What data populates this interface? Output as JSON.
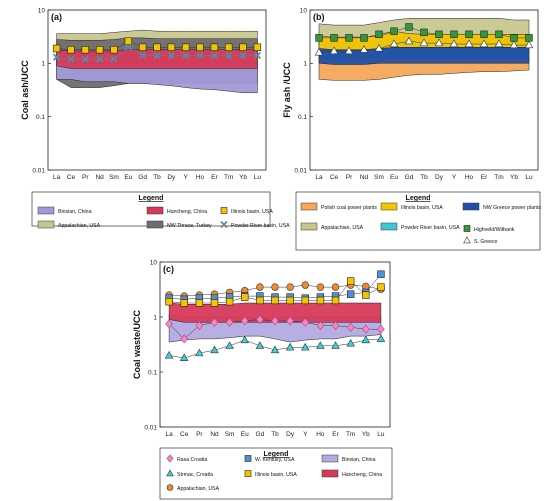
{
  "chart_data": [
    {
      "type": "area",
      "panel_label": "(a)",
      "ylabel": "Coal ash/UCC",
      "yscale": "log",
      "ylim": [
        0.01,
        10
      ],
      "yticks": [
        "0.01",
        "0.1",
        "1",
        "10"
      ],
      "categories": [
        "La",
        "Ce",
        "Pr",
        "Nd",
        "Sm",
        "Eu",
        "Gd",
        "Tb",
        "Dy",
        "Y",
        "Ho",
        "Er",
        "Tm",
        "Yb",
        "Lu"
      ],
      "legend_title": "Legend",
      "bands": [
        {
          "name": "Appalachian, USA",
          "color": "#c8c690",
          "upper": [
            3.6,
            3.6,
            3.6,
            3.6,
            3.8,
            4.0,
            4.2,
            4.0,
            4.0,
            4.0,
            4.0,
            4.0,
            4.0,
            4.0,
            4.0
          ],
          "lower": [
            0.9,
            0.9,
            0.9,
            0.9,
            0.9,
            0.9,
            0.9,
            0.9,
            0.9,
            0.9,
            0.9,
            0.9,
            0.9,
            0.9,
            0.9
          ]
        },
        {
          "name": "NW Thrace, Turkey",
          "color": "#6e6e6e",
          "upper": [
            2.8,
            2.7,
            2.7,
            2.7,
            2.8,
            3.0,
            3.0,
            2.9,
            2.9,
            2.9,
            2.9,
            2.9,
            2.9,
            2.9,
            2.9
          ],
          "lower": [
            0.5,
            0.35,
            0.35,
            0.35,
            0.38,
            0.42,
            0.42,
            0.42,
            0.42,
            0.42,
            0.42,
            0.42,
            0.42,
            0.42,
            0.42
          ]
        },
        {
          "name": "Binxian, China",
          "color": "#a29ad8",
          "upper": [
            1.1,
            1.0,
            1.0,
            1.0,
            1.0,
            1.0,
            1.0,
            1.0,
            1.0,
            1.0,
            1.0,
            1.0,
            1.0,
            1.0,
            1.0
          ],
          "lower": [
            0.5,
            0.5,
            0.45,
            0.45,
            0.45,
            0.42,
            0.42,
            0.4,
            0.38,
            0.35,
            0.33,
            0.32,
            0.3,
            0.28,
            0.28
          ]
        },
        {
          "name": "Hancheng, China",
          "color": "#d63a58",
          "upper": [
            1.8,
            1.7,
            1.7,
            1.7,
            1.7,
            1.8,
            1.8,
            1.8,
            1.8,
            1.8,
            1.8,
            1.8,
            1.8,
            1.8,
            1.8
          ],
          "lower": [
            0.9,
            0.8,
            0.8,
            0.8,
            0.8,
            0.8,
            0.8,
            0.8,
            0.8,
            0.8,
            0.8,
            0.8,
            0.8,
            0.8,
            0.8
          ]
        }
      ],
      "series": [
        {
          "name": "Illinois basin, USA",
          "marker": "square",
          "color": "#f5c400",
          "values": [
            1.9,
            1.8,
            1.8,
            1.8,
            1.8,
            2.6,
            2.0,
            2.0,
            2.0,
            2.0,
            2.0,
            2.0,
            2.0,
            2.0,
            2.0
          ]
        },
        {
          "name": "Powder River basin, USA",
          "marker": "x",
          "color": "#5a8aa8",
          "values": [
            1.3,
            1.2,
            1.2,
            1.2,
            1.2,
            2.0,
            1.4,
            1.4,
            1.4,
            1.4,
            1.4,
            1.4,
            1.4,
            1.4,
            1.4
          ]
        }
      ],
      "legend_entries": [
        "Binxian, China",
        "Hancheng, China",
        "Illinois basin, USA",
        "Appalachian, USA",
        "NW Thrace, Turkey",
        "Powder River basin, USA"
      ]
    },
    {
      "type": "area",
      "panel_label": "(b)",
      "ylabel": "Fly ash /UCC",
      "yscale": "log",
      "ylim": [
        0.01,
        10
      ],
      "yticks": [
        "0.01",
        "0.1",
        "1",
        "10"
      ],
      "categories": [
        "La",
        "Ce",
        "Pr",
        "Nd",
        "Sm",
        "Eu",
        "Gd",
        "Tb",
        "Dy",
        "Y",
        "Ho",
        "Er",
        "Tm",
        "Yb",
        "Lu"
      ],
      "legend_title": "Legend",
      "bands": [
        {
          "name": "Appalachian, USA",
          "color": "#c8c690",
          "upper": [
            5.5,
            5.2,
            5.2,
            5.2,
            5.8,
            6.5,
            7.0,
            7.0,
            7.0,
            7.0,
            7.0,
            7.0,
            7.0,
            6.5,
            6.5
          ],
          "lower": [
            2.0,
            2.0,
            2.0,
            2.0,
            2.0,
            2.0,
            2.0,
            2.0,
            2.0,
            2.0,
            2.0,
            2.0,
            2.0,
            2.0,
            2.0
          ]
        },
        {
          "name": "Powder River basin, USA",
          "color": "#40c4d8",
          "upper": [
            2.5,
            2.4,
            2.4,
            2.4,
            2.5,
            3.0,
            3.0,
            3.0,
            3.0,
            3.0,
            3.0,
            3.0,
            3.0,
            3.0,
            3.0
          ],
          "lower": [
            1.2,
            1.1,
            1.1,
            1.1,
            1.2,
            1.3,
            1.3,
            1.3,
            1.3,
            1.3,
            1.3,
            1.3,
            1.3,
            1.3,
            1.3
          ]
        },
        {
          "name": "Illinois basin, USA",
          "color": "#f5c400",
          "upper": [
            3.2,
            3.1,
            3.1,
            3.1,
            3.2,
            4.0,
            3.6,
            3.5,
            3.5,
            3.5,
            3.5,
            3.5,
            3.5,
            3.5,
            3.5
          ],
          "lower": [
            1.8,
            1.7,
            1.7,
            1.7,
            1.8,
            2.0,
            2.0,
            2.0,
            2.0,
            2.0,
            2.0,
            2.0,
            2.0,
            2.0,
            2.0
          ]
        },
        {
          "name": "Polish coal power plants",
          "color": "#f6a65a",
          "upper": [
            1.3,
            1.3,
            1.3,
            1.3,
            1.3,
            1.3,
            1.3,
            1.3,
            1.3,
            1.3,
            1.3,
            1.3,
            1.3,
            1.3,
            1.3
          ],
          "lower": [
            0.5,
            0.48,
            0.48,
            0.48,
            0.5,
            0.55,
            0.6,
            0.62,
            0.62,
            0.65,
            0.68,
            0.7,
            0.7,
            0.72,
            0.75
          ]
        },
        {
          "name": "NW Greece power plants",
          "color": "#1f4fa8",
          "upper": [
            1.9,
            1.8,
            1.8,
            1.8,
            1.9,
            2.0,
            2.0,
            2.0,
            2.0,
            2.0,
            2.0,
            2.0,
            2.0,
            2.0,
            2.0
          ],
          "lower": [
            1.0,
            0.95,
            0.95,
            0.95,
            1.0,
            1.0,
            1.0,
            1.0,
            1.0,
            1.0,
            1.0,
            1.0,
            1.0,
            1.0,
            1.0
          ]
        }
      ],
      "series": [
        {
          "name": "Highveld/Witbank",
          "marker": "square",
          "color": "#2e9a3a",
          "values": [
            3.0,
            3.0,
            3.0,
            3.0,
            3.5,
            4.0,
            4.8,
            3.8,
            3.5,
            3.5,
            3.5,
            3.5,
            3.5,
            3.0,
            3.0
          ]
        },
        {
          "name": "S. Greece",
          "marker": "triangle",
          "color": "#ffffff",
          "values": [
            1.6,
            1.7,
            1.7,
            1.8,
            1.9,
            2.3,
            2.6,
            2.4,
            2.4,
            2.3,
            2.3,
            2.3,
            2.3,
            2.2,
            2.2
          ]
        }
      ],
      "legend_entries": [
        "Polish coal power plants",
        "Illinois basin, USA",
        "NW Greece power plants",
        "Appalachian, USA",
        "Powder River basin, USA",
        "Highveld/Witbank",
        "S. Greece"
      ]
    },
    {
      "type": "area",
      "panel_label": "(c)",
      "ylabel": "Coal  waste/UCC",
      "yscale": "log",
      "ylim": [
        0.01,
        10
      ],
      "yticks": [
        "0.01",
        "0.1",
        "1",
        "10"
      ],
      "categories": [
        "La",
        "Ce",
        "Pr",
        "Nd",
        "Sm",
        "Eu",
        "Gd",
        "Tb",
        "Dy",
        "Y",
        "Ho",
        "Er",
        "Tm",
        "Yb",
        "Lu"
      ],
      "legend_title": "Legend",
      "bands": [
        {
          "name": "Binxian, China",
          "color": "#b3aae2",
          "upper": [
            1.1,
            1.0,
            1.0,
            1.0,
            1.0,
            1.0,
            1.0,
            1.0,
            1.0,
            1.0,
            1.0,
            1.0,
            1.0,
            1.0,
            1.0
          ],
          "lower": [
            0.35,
            0.38,
            0.4,
            0.4,
            0.42,
            0.45,
            0.45,
            0.4,
            0.35,
            0.38,
            0.4,
            0.4,
            0.45,
            0.45,
            0.48
          ]
        },
        {
          "name": "Hancheng, China",
          "color": "#d63a58",
          "upper": [
            1.8,
            1.7,
            1.7,
            1.7,
            1.7,
            1.8,
            1.8,
            1.8,
            1.8,
            1.8,
            1.8,
            1.8,
            1.8,
            1.8,
            1.8
          ],
          "lower": [
            0.9,
            0.8,
            0.8,
            0.8,
            0.8,
            0.8,
            0.8,
            0.8,
            0.8,
            0.8,
            0.8,
            0.8,
            0.8,
            0.8,
            0.8
          ]
        }
      ],
      "series": [
        {
          "name": "Rasa Croatia",
          "marker": "diamond",
          "color": "#f08ac4",
          "values": [
            0.75,
            0.4,
            0.7,
            0.8,
            0.8,
            0.85,
            0.9,
            0.85,
            0.85,
            0.8,
            0.7,
            0.7,
            0.65,
            0.6,
            0.6
          ]
        },
        {
          "name": "Strmac, Croatia",
          "marker": "triangle",
          "color": "#3ed0d0",
          "values": [
            0.2,
            0.18,
            0.22,
            0.25,
            0.3,
            0.38,
            0.3,
            0.25,
            0.28,
            0.28,
            0.3,
            0.3,
            0.33,
            0.38,
            0.4
          ]
        },
        {
          "name": "Appalachian, USA",
          "marker": "circle",
          "color": "#f08a30",
          "values": [
            2.5,
            2.4,
            2.5,
            2.6,
            2.8,
            3.0,
            3.5,
            3.5,
            3.5,
            3.8,
            3.5,
            3.5,
            3.8,
            3.6,
            3.2
          ]
        },
        {
          "name": "W. Kentuky, USA",
          "marker": "square",
          "color": "#4f8fd8",
          "values": [
            2.2,
            2.1,
            2.2,
            2.2,
            2.3,
            2.4,
            2.4,
            2.3,
            2.3,
            2.2,
            2.3,
            2.4,
            2.6,
            2.8,
            6.0
          ]
        },
        {
          "name": "Illinois basin, USA",
          "marker": "square",
          "color": "#f5c400",
          "values": [
            1.9,
            1.8,
            1.8,
            1.8,
            1.9,
            2.3,
            2.0,
            2.0,
            2.0,
            2.0,
            2.0,
            2.0,
            4.5,
            2.5,
            3.5
          ]
        }
      ],
      "legend_entries": [
        "Rasa Croatia",
        "W. Kentuky, USA",
        "Binxian, China",
        "Strmac, Croatia",
        "Illinois basin, USA",
        "Hancheng, China",
        "Appalachian, USA"
      ]
    }
  ]
}
